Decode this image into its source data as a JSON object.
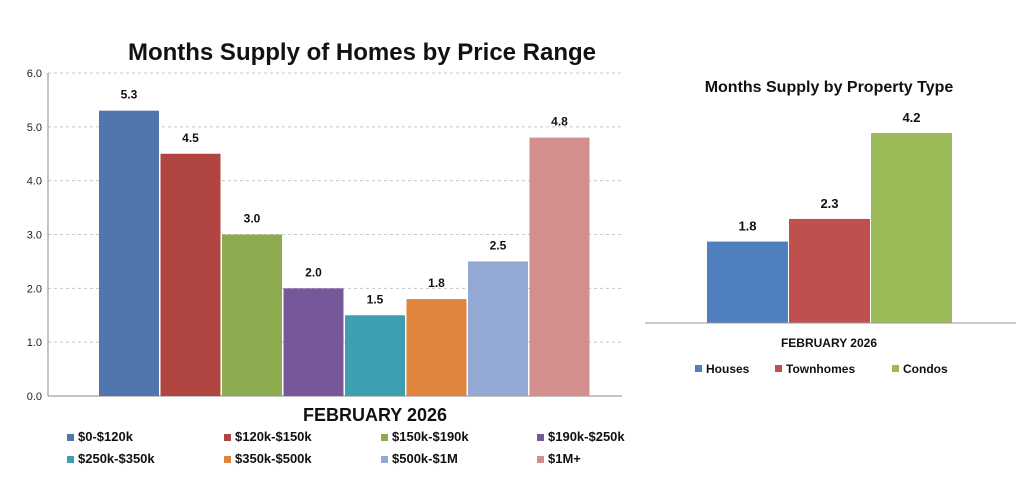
{
  "colors": {
    "blue": "#4F77AE",
    "red": "#B04541",
    "green": "#8CAB4F",
    "purple": "#76589A",
    "teal": "#3E9FB3",
    "orange": "#E0843C",
    "lightblue": "#93A9D3",
    "pink": "#D38E8E",
    "houses": "#4F7FBE",
    "townhomes": "#C0504D",
    "condos": "#9BBB59"
  },
  "chart_data": [
    {
      "type": "bar",
      "title": "Months Supply of Homes by Price Range",
      "xlabel": "FEBRUARY 2026",
      "ylabel": "",
      "ylim": [
        0,
        6
      ],
      "yticks": [
        "0.0",
        "1.0",
        "2.0",
        "3.0",
        "4.0",
        "5.0",
        "6.0"
      ],
      "grid": true,
      "legend_position": "bottom",
      "categories": [
        "FEBRUARY 2026"
      ],
      "series": [
        {
          "name": "$0-$120k",
          "value": 5.3,
          "label": "5.3",
          "color": "#4F77AE"
        },
        {
          "name": "$120k-$150k",
          "value": 4.5,
          "label": "4.5",
          "color": "#B04541"
        },
        {
          "name": "$150k-$190k",
          "value": 3.0,
          "label": "3.0",
          "color": "#8CAB4F"
        },
        {
          "name": "$190k-$250k",
          "value": 2.0,
          "label": "2.0",
          "color": "#76589A"
        },
        {
          "name": "$250k-$350k",
          "value": 1.5,
          "label": "1.5",
          "color": "#3E9FB3"
        },
        {
          "name": "$350k-$500k",
          "value": 1.8,
          "label": "1.8",
          "color": "#E0843C"
        },
        {
          "name": "$500k-$1M",
          "value": 2.5,
          "label": "2.5",
          "color": "#93A9D3"
        },
        {
          "name": "$1M+",
          "value": 4.8,
          "label": "4.8",
          "color": "#D38E8E"
        }
      ]
    },
    {
      "type": "bar",
      "title": "Months Supply by Property Type",
      "xlabel": "FEBRUARY 2026",
      "ylabel": "",
      "ylim": [
        0,
        5
      ],
      "grid": false,
      "legend_position": "bottom",
      "categories": [
        "FEBRUARY 2026"
      ],
      "series": [
        {
          "name": "Houses",
          "value": 1.8,
          "label": "1.8",
          "color": "#4F7FBE"
        },
        {
          "name": "Townhomes",
          "value": 2.3,
          "label": "2.3",
          "color": "#C0504D"
        },
        {
          "name": "Condos",
          "value": 4.2,
          "label": "4.2",
          "color": "#9BBB59"
        }
      ]
    }
  ]
}
